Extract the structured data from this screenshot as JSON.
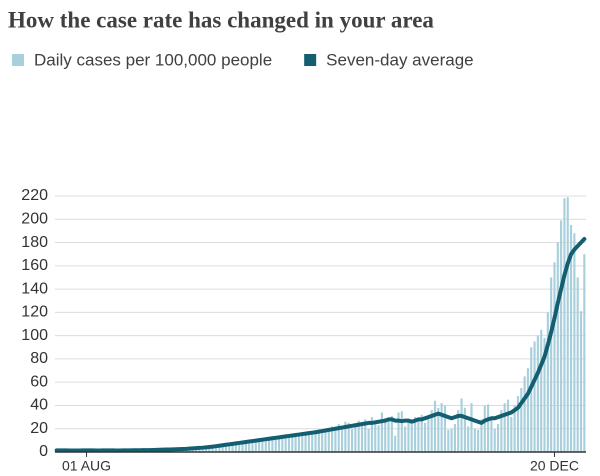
{
  "chart_data": {
    "type": "bar",
    "title": "How the case rate has changed in your area",
    "categories": [
      null,
      null,
      null,
      null,
      null,
      null,
      null,
      null,
      null,
      "01 AUG",
      null,
      null,
      null,
      null,
      null,
      null,
      null,
      null,
      null,
      null,
      null,
      null,
      null,
      null,
      null,
      null,
      null,
      null,
      null,
      null,
      null,
      null,
      null,
      null,
      null,
      null,
      null,
      null,
      null,
      null,
      null,
      null,
      null,
      null,
      null,
      null,
      null,
      null,
      null,
      null,
      null,
      null,
      null,
      null,
      null,
      null,
      null,
      null,
      null,
      null,
      null,
      null,
      null,
      null,
      null,
      null,
      null,
      null,
      null,
      null,
      null,
      null,
      null,
      null,
      null,
      null,
      null,
      null,
      null,
      null,
      null,
      null,
      null,
      null,
      null,
      null,
      null,
      null,
      null,
      null,
      null,
      null,
      null,
      null,
      null,
      null,
      null,
      null,
      null,
      null,
      null,
      null,
      null,
      null,
      null,
      null,
      null,
      null,
      null,
      null,
      null,
      null,
      null,
      null,
      null,
      null,
      null,
      null,
      null,
      null,
      null,
      null,
      null,
      null,
      null,
      null,
      null,
      null,
      null,
      null,
      null,
      null,
      null,
      null,
      null,
      null,
      null,
      null,
      null,
      null,
      null,
      null,
      null,
      null,
      null,
      null,
      null,
      null,
      null,
      null,
      "20 DEC",
      null,
      null,
      null,
      null,
      null,
      null,
      null,
      null,
      null
    ],
    "series": [
      {
        "name": "Daily cases per 100,000 people",
        "type": "bar",
        "color": "#a8cfdc",
        "values": [
          1,
          1,
          2,
          1,
          1,
          2,
          1,
          1,
          2,
          1,
          2,
          1,
          1,
          2,
          2,
          1,
          1,
          2,
          1,
          1,
          2,
          2,
          1,
          1,
          2,
          1,
          2,
          2,
          1,
          2,
          2,
          3,
          2,
          2,
          3,
          2,
          2,
          3,
          3,
          2,
          3,
          3,
          4,
          3,
          4,
          4,
          5,
          4,
          5,
          6,
          6,
          5,
          7,
          6,
          8,
          7,
          8,
          9,
          8,
          10,
          9,
          10,
          11,
          10,
          12,
          11,
          13,
          12,
          14,
          12,
          15,
          13,
          16,
          14,
          17,
          15,
          18,
          17,
          19,
          16,
          18,
          20,
          19,
          22,
          18,
          24,
          21,
          26,
          25,
          20,
          22,
          27,
          24,
          28,
          20,
          30,
          26,
          23,
          34,
          29,
          28,
          31,
          14,
          34,
          35,
          22,
          26,
          24,
          30,
          27,
          32,
          25,
          28,
          36,
          44,
          38,
          42,
          40,
          19,
          20,
          24,
          36,
          46,
          38,
          22,
          42,
          20,
          19,
          28,
          40,
          41,
          30,
          20,
          24,
          36,
          42,
          45,
          30,
          40,
          48,
          55,
          65,
          72,
          90,
          95,
          100,
          105,
          98,
          120,
          150,
          163,
          180,
          199,
          218,
          219,
          195,
          188,
          150,
          121,
          170
        ]
      },
      {
        "name": "Seven-day average",
        "type": "line",
        "color": "#135f71",
        "values": [
          1.4,
          1.4,
          1.4,
          1.4,
          1.3,
          1.3,
          1.3,
          1.3,
          1.4,
          1.4,
          1.4,
          1.4,
          1.3,
          1.3,
          1.4,
          1.4,
          1.4,
          1.4,
          1.3,
          1.3,
          1.4,
          1.4,
          1.4,
          1.5,
          1.5,
          1.5,
          1.6,
          1.6,
          1.6,
          1.7,
          1.8,
          1.9,
          2,
          2.1,
          2.2,
          2.3,
          2.4,
          2.5,
          2.6,
          2.7,
          2.9,
          3.1,
          3.3,
          3.5,
          3.7,
          4,
          4.3,
          4.6,
          5,
          5.4,
          5.8,
          6.2,
          6.6,
          7,
          7.4,
          7.8,
          8.2,
          8.6,
          9,
          9.4,
          9.8,
          10.2,
          10.6,
          11,
          11.4,
          11.8,
          12.2,
          12.6,
          13,
          13.4,
          13.8,
          14.2,
          14.6,
          15,
          15.4,
          15.8,
          16.2,
          16.6,
          17,
          17.5,
          18,
          18.5,
          19,
          19.5,
          20,
          20.5,
          21,
          21.5,
          22,
          22.5,
          23,
          23.5,
          24,
          24.5,
          25,
          25,
          25.5,
          26,
          26.5,
          27,
          28,
          28,
          27,
          27,
          26.5,
          27,
          27,
          26,
          27,
          28,
          28,
          29,
          30,
          31,
          32,
          33,
          32,
          31,
          30,
          29,
          30,
          31,
          31,
          30,
          29,
          28,
          27,
          26,
          25,
          27,
          28,
          29,
          29,
          30,
          31,
          32,
          33,
          34,
          36,
          38,
          42,
          46,
          50,
          56,
          62,
          68,
          75,
          82,
          92,
          103,
          115,
          128,
          140,
          152,
          162,
          170,
          174,
          177,
          180,
          183
        ]
      }
    ],
    "ylim": [
      0,
      220
    ],
    "yticks": [
      0,
      20,
      40,
      60,
      80,
      100,
      120,
      140,
      160,
      180,
      200,
      220
    ],
    "grid": true
  }
}
